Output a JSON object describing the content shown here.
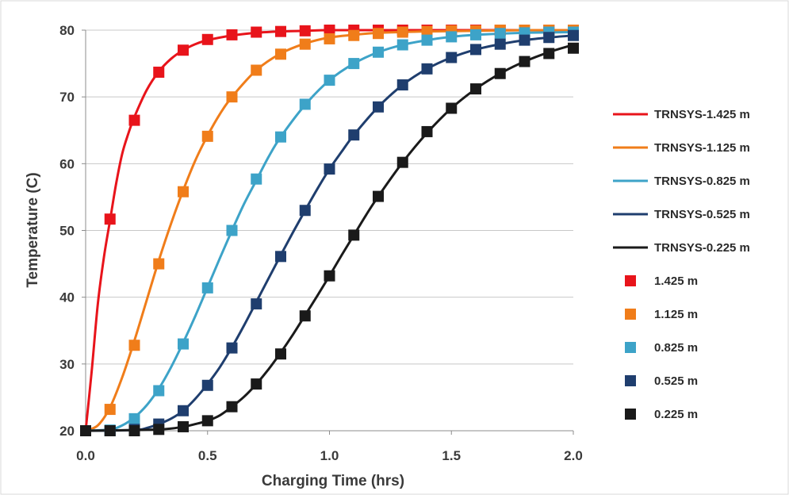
{
  "chart_data": {
    "type": "line",
    "title": "",
    "xlabel": "Charging Time  (hrs)",
    "ylabel": "Temperature  (C)",
    "xlim": [
      0,
      2
    ],
    "ylim": [
      20,
      80
    ],
    "xticks": [
      "0.0",
      "0.5",
      "1.0",
      "1.5",
      "2.0"
    ],
    "yticks": [
      "20",
      "30",
      "40",
      "50",
      "60",
      "70",
      "80"
    ],
    "grid": "horizontal",
    "legend_position": "right",
    "series": [
      {
        "name": "TRNSYS-1.425 m",
        "kind": "line",
        "color": "#e8141b",
        "x": [
          0,
          0.025,
          0.05,
          0.075,
          0.1,
          0.125,
          0.15,
          0.175,
          0.2,
          0.25,
          0.3,
          0.35,
          0.4,
          0.45,
          0.5,
          0.6,
          0.7,
          0.8,
          0.9,
          1.0,
          1.2,
          1.5,
          2.0
        ],
        "y": [
          20,
          29,
          39,
          46,
          51.5,
          57,
          61.5,
          64.5,
          67,
          71,
          73.8,
          75.7,
          77,
          77.9,
          78.5,
          79.2,
          79.6,
          79.8,
          79.9,
          80,
          80,
          80,
          80
        ]
      },
      {
        "name": "TRNSYS-1.125 m",
        "kind": "line",
        "color": "#f07d1a",
        "x": [
          0,
          0.05,
          0.1,
          0.15,
          0.2,
          0.25,
          0.3,
          0.35,
          0.4,
          0.45,
          0.5,
          0.55,
          0.6,
          0.7,
          0.8,
          0.9,
          1.0,
          1.1,
          1.2,
          1.4,
          1.6,
          1.8,
          2.0
        ],
        "y": [
          20,
          20.8,
          23.5,
          28,
          33.5,
          39.5,
          45.5,
          51,
          56,
          60.5,
          64.2,
          67.4,
          70,
          74,
          76.5,
          78,
          78.9,
          79.3,
          79.6,
          79.8,
          79.9,
          80,
          80
        ]
      },
      {
        "name": "TRNSYS-0.825 m",
        "kind": "line",
        "color": "#3da3c8",
        "x": [
          0,
          0.1,
          0.15,
          0.2,
          0.25,
          0.3,
          0.35,
          0.4,
          0.45,
          0.5,
          0.55,
          0.6,
          0.65,
          0.7,
          0.75,
          0.8,
          0.9,
          1.0,
          1.1,
          1.2,
          1.3,
          1.4,
          1.5,
          1.6,
          1.8,
          2.0
        ],
        "y": [
          20,
          20.2,
          20.8,
          22,
          23.8,
          26.3,
          29.5,
          33.2,
          37.2,
          41.5,
          45.8,
          50,
          54,
          57.5,
          61,
          64,
          68.8,
          72.5,
          75,
          76.7,
          77.8,
          78.5,
          79,
          79.3,
          79.6,
          79.7
        ]
      },
      {
        "name": "TRNSYS-0.525 m",
        "kind": "line",
        "color": "#1f3e6e",
        "x": [
          0,
          0.2,
          0.25,
          0.3,
          0.35,
          0.4,
          0.45,
          0.5,
          0.55,
          0.6,
          0.65,
          0.7,
          0.75,
          0.8,
          0.85,
          0.9,
          0.95,
          1.0,
          1.05,
          1.1,
          1.2,
          1.3,
          1.4,
          1.5,
          1.6,
          1.7,
          1.8,
          1.9,
          2.0
        ],
        "y": [
          20,
          20.1,
          20.4,
          21,
          21.8,
          23,
          24.8,
          27,
          29.5,
          32.5,
          35.8,
          39.3,
          42.8,
          46.3,
          49.7,
          53,
          56.2,
          59.2,
          61.8,
          64.3,
          68.5,
          71.8,
          74.2,
          75.9,
          77.1,
          77.9,
          78.5,
          78.9,
          79.2
        ]
      },
      {
        "name": "TRNSYS-0.225 m",
        "kind": "line",
        "color": "#1a1a1a",
        "x": [
          0,
          0.3,
          0.4,
          0.45,
          0.5,
          0.55,
          0.6,
          0.65,
          0.7,
          0.75,
          0.8,
          0.85,
          0.9,
          0.95,
          1.0,
          1.05,
          1.1,
          1.15,
          1.2,
          1.3,
          1.4,
          1.5,
          1.6,
          1.7,
          1.8,
          1.9,
          2.0
        ],
        "y": [
          20,
          20.2,
          20.6,
          21,
          21.5,
          22.3,
          23.6,
          25.1,
          27,
          29.2,
          31.7,
          34.4,
          37.3,
          40.2,
          43.2,
          46.3,
          49.3,
          52.3,
          55.1,
          60.2,
          64.6,
          68.3,
          71.2,
          73.5,
          75.3,
          76.7,
          77.8
        ]
      },
      {
        "name": "1.425 m",
        "kind": "marker",
        "color": "#e8141b",
        "x": [
          0,
          0.1,
          0.2,
          0.3,
          0.4,
          0.5,
          0.6,
          0.7,
          0.8,
          0.9,
          1.0,
          1.1,
          1.2,
          1.3,
          1.4,
          1.5,
          1.6,
          1.7,
          1.8,
          1.9,
          2.0
        ],
        "y": [
          20,
          51.7,
          66.5,
          73.7,
          77,
          78.6,
          79.3,
          79.7,
          79.8,
          79.9,
          80,
          80,
          80,
          80,
          80,
          80,
          80,
          80,
          80,
          80,
          80
        ]
      },
      {
        "name": "1.125 m",
        "kind": "marker",
        "color": "#f07d1a",
        "x": [
          0,
          0.1,
          0.2,
          0.3,
          0.4,
          0.5,
          0.6,
          0.7,
          0.8,
          0.9,
          1.0,
          1.1,
          1.2,
          1.3,
          1.4,
          1.5,
          1.6,
          1.7,
          1.8,
          1.9,
          2.0
        ],
        "y": [
          20,
          23.2,
          32.8,
          45,
          55.8,
          64.1,
          70,
          74,
          76.4,
          77.9,
          78.7,
          79.2,
          79.5,
          79.7,
          79.8,
          79.9,
          79.9,
          80,
          80,
          80,
          80
        ]
      },
      {
        "name": "0.825 m",
        "kind": "marker",
        "color": "#3da3c8",
        "x": [
          0,
          0.1,
          0.2,
          0.3,
          0.4,
          0.5,
          0.6,
          0.7,
          0.8,
          0.9,
          1.0,
          1.1,
          1.2,
          1.3,
          1.4,
          1.5,
          1.6,
          1.7,
          1.8,
          1.9,
          2.0
        ],
        "y": [
          20,
          20.1,
          21.8,
          26,
          33,
          41.4,
          50,
          57.7,
          64,
          68.9,
          72.5,
          75,
          76.7,
          77.8,
          78.5,
          79,
          79.3,
          79.5,
          79.6,
          79.7,
          79.7
        ]
      },
      {
        "name": "0.525 m",
        "kind": "marker",
        "color": "#1f3e6e",
        "x": [
          0,
          0.1,
          0.2,
          0.3,
          0.4,
          0.5,
          0.6,
          0.7,
          0.8,
          0.9,
          1.0,
          1.1,
          1.2,
          1.3,
          1.4,
          1.5,
          1.6,
          1.7,
          1.8,
          1.9,
          2.0
        ],
        "y": [
          20,
          20,
          20.2,
          21,
          23,
          26.8,
          32.4,
          39,
          46.1,
          53,
          59.2,
          64.3,
          68.5,
          71.8,
          74.2,
          75.9,
          77.1,
          77.9,
          78.5,
          78.9,
          79.2
        ]
      },
      {
        "name": "0.225 m",
        "kind": "marker",
        "color": "#1a1a1a",
        "x": [
          0,
          0.1,
          0.2,
          0.3,
          0.4,
          0.5,
          0.6,
          0.7,
          0.8,
          0.9,
          1.0,
          1.1,
          1.2,
          1.3,
          1.4,
          1.5,
          1.6,
          1.7,
          1.8,
          1.9,
          2.0
        ],
        "y": [
          20,
          20,
          20,
          20.2,
          20.6,
          21.5,
          23.6,
          27,
          31.5,
          37.2,
          43.2,
          49.3,
          55.1,
          60.2,
          64.8,
          68.3,
          71.2,
          73.5,
          75.3,
          76.5,
          77.3
        ]
      }
    ]
  }
}
